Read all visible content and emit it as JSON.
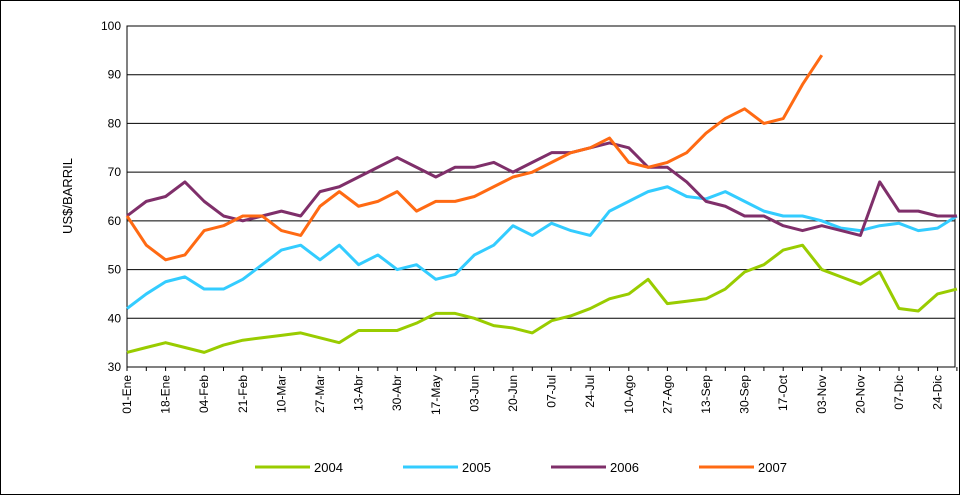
{
  "chart_data": {
    "type": "line",
    "y_label": "US$/BARRIL",
    "categories": [
      "01-Ene",
      null,
      "18-Ene",
      null,
      "04-Feb",
      null,
      "21-Feb",
      null,
      "10-Mar",
      null,
      "27-Mar",
      null,
      "13-Abr",
      null,
      "30-Abr",
      null,
      "17-May",
      null,
      "03-Jun",
      null,
      "20-Jun",
      null,
      "07-Jul",
      null,
      "24-Jul",
      null,
      "10-Ago",
      null,
      "27-Ago",
      null,
      "13-Sep",
      null,
      "30-Sep",
      null,
      "17-Oct",
      null,
      "03-Nov",
      null,
      "20-Nov",
      null,
      "07-Dic",
      null,
      "24-Dic",
      null
    ],
    "series": [
      {
        "name": "2004",
        "color": "#99cc00",
        "values": [
          33,
          34,
          35,
          34,
          33,
          34.5,
          35.5,
          36,
          36.5,
          37,
          36,
          35,
          37.5,
          37.5,
          37.5,
          39,
          41,
          41,
          40,
          38.5,
          38,
          37,
          39.5,
          40.5,
          42,
          44,
          45,
          48,
          43,
          43.5,
          44,
          46,
          49.5,
          51,
          54,
          55,
          50,
          48.5,
          47,
          49.5,
          42,
          41.5,
          45,
          46
        ]
      },
      {
        "name": "2005",
        "color": "#33ccff",
        "values": [
          42,
          45,
          47.5,
          48.5,
          46,
          46,
          48,
          51,
          54,
          55,
          52,
          55,
          51,
          53,
          50,
          51,
          48,
          49,
          53,
          55,
          59,
          57,
          59.5,
          58,
          57,
          62,
          64,
          66,
          67,
          65,
          64.5,
          66,
          64,
          62,
          61,
          61,
          60,
          58.5,
          58,
          59,
          59.5,
          58,
          58.5,
          61
        ]
      },
      {
        "name": "2006",
        "color": "#7f2f6a",
        "values": [
          61,
          64,
          65,
          68,
          64,
          61,
          60,
          61,
          62,
          61,
          66,
          67,
          69,
          71,
          73,
          71,
          69,
          71,
          71,
          72,
          70,
          72,
          74,
          74,
          75,
          76,
          75,
          71,
          71,
          68,
          64,
          63,
          61,
          61,
          59,
          58,
          59,
          58,
          57,
          68,
          62,
          62,
          61,
          61
        ]
      },
      {
        "name": "2007",
        "color": "#ff6a13",
        "values": [
          61,
          55,
          52,
          53,
          58,
          59,
          61,
          61,
          58,
          57,
          63,
          66,
          63,
          64,
          66,
          62,
          64,
          64,
          65,
          67,
          69,
          70,
          72,
          74,
          75,
          77,
          72,
          71,
          72,
          74,
          78,
          81,
          83,
          80,
          81,
          88,
          94,
          null,
          null,
          null,
          null,
          null,
          null,
          null
        ]
      }
    ],
    "ylim": [
      30,
      100
    ],
    "yticks": [
      30,
      40,
      50,
      60,
      70,
      80,
      90,
      100
    ],
    "grid": true,
    "legend": "bottom"
  }
}
